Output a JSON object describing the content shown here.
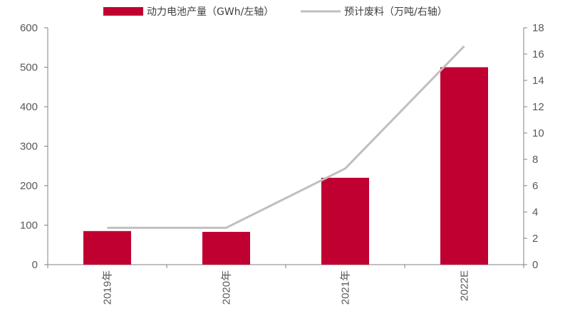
{
  "chart_data": {
    "type": "bar",
    "categories": [
      "2019年",
      "2020年",
      "2021年",
      "2022E"
    ],
    "series": [
      {
        "name": "动力电池产量（GWh/左轴）",
        "type": "bar",
        "axis": "left",
        "color": "#C00030",
        "values": [
          85,
          83,
          220,
          500
        ]
      },
      {
        "name": "预计废料（万吨/右轴）",
        "type": "line",
        "axis": "right",
        "color": "#BFBFBF",
        "values": [
          2.8,
          2.8,
          7.3,
          16.6
        ]
      }
    ],
    "y_left": {
      "ylim": [
        0,
        600
      ],
      "ticks": [
        0,
        100,
        200,
        300,
        400,
        500,
        600
      ]
    },
    "y_right": {
      "ylim": [
        0,
        18
      ],
      "ticks": [
        0,
        2,
        4,
        6,
        8,
        10,
        12,
        14,
        16,
        18
      ]
    },
    "legend_position": "top",
    "grid": false
  }
}
